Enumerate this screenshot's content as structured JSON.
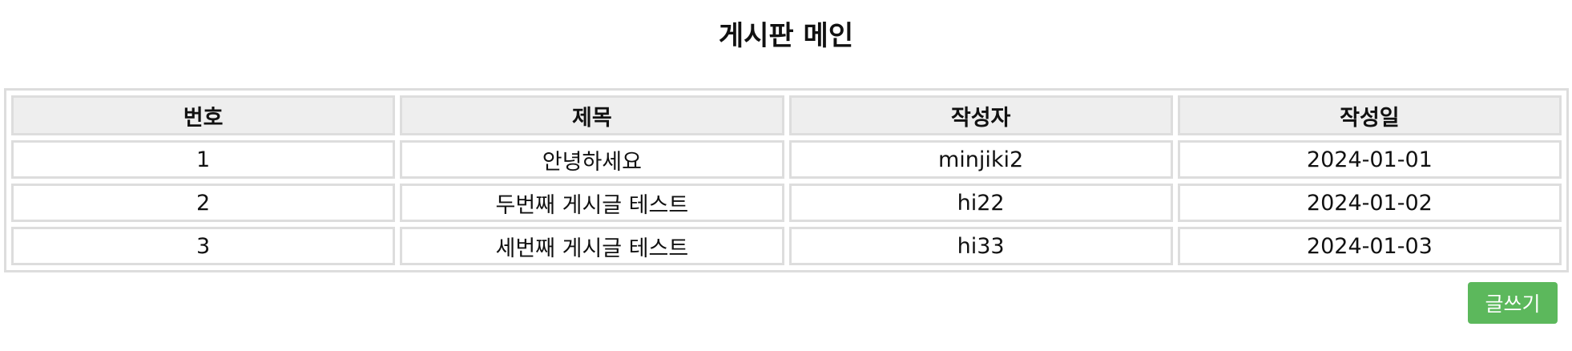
{
  "page": {
    "title": "게시판 메인"
  },
  "table": {
    "headers": [
      "번호",
      "제목",
      "작성자",
      "작성일"
    ],
    "rows": [
      {
        "no": "1",
        "title": "안녕하세요",
        "author": "minjiki2",
        "date": "2024-01-01"
      },
      {
        "no": "2",
        "title": "두번째 게시글 테스트",
        "author": "hi22",
        "date": "2024-01-02"
      },
      {
        "no": "3",
        "title": "세번째 게시글 테스트",
        "author": "hi33",
        "date": "2024-01-03"
      }
    ]
  },
  "actions": {
    "write_label": "글쓰기",
    "write_color": "#5cb85c"
  }
}
